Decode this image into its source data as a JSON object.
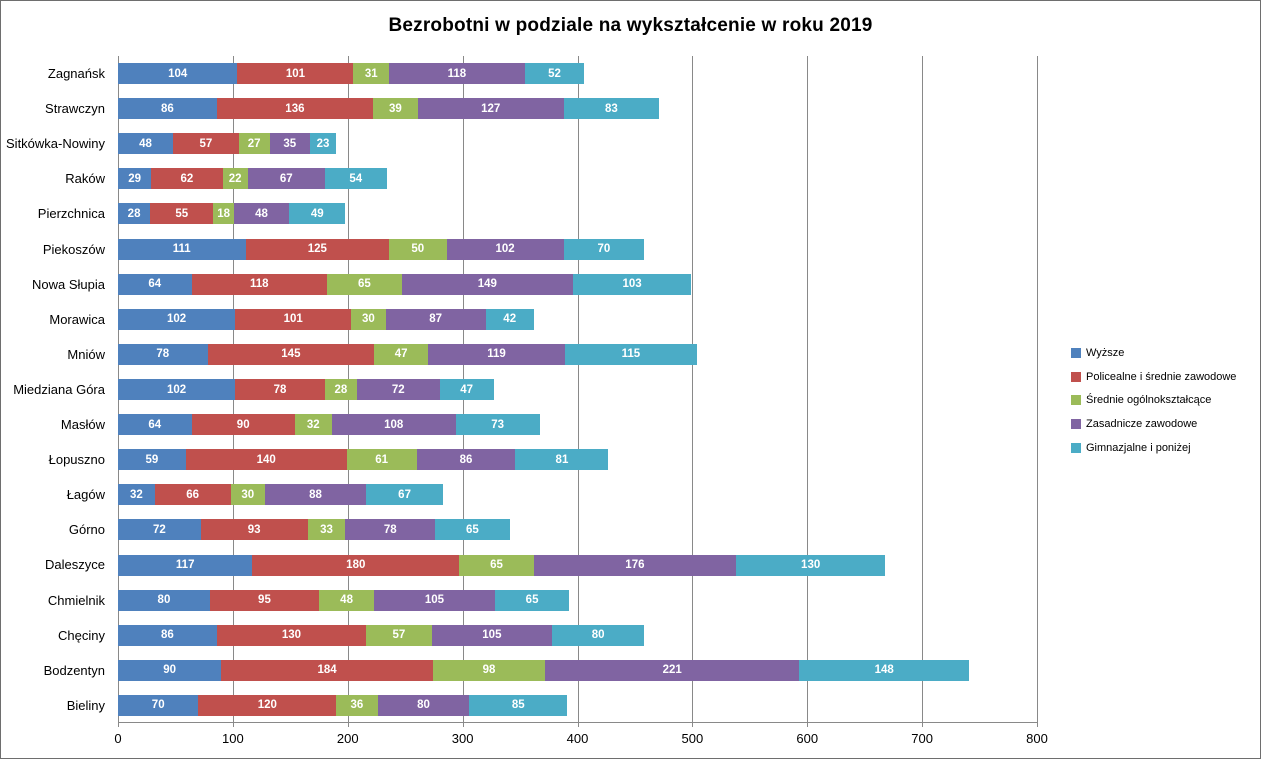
{
  "title": "Bezrobotni w podziale na wykształcenie w roku 2019",
  "chart_data": {
    "type": "bar",
    "orientation": "horizontal",
    "stacked": true,
    "title": "Bezrobotni w podziale na wykształcenie w roku 2019",
    "categories": [
      "Zagnańsk",
      "Strawczyn",
      "Sitkówka-Nowiny",
      "Raków",
      "Pierzchnica",
      "Piekoszów",
      "Nowa Słupia",
      "Morawica",
      "Mniów",
      "Miedziana Góra",
      "Masłów",
      "Łopuszno",
      "Łagów",
      "Górno",
      "Daleszyce",
      "Chmielnik",
      "Chęciny",
      "Bodzentyn",
      "Bieliny"
    ],
    "series": [
      {
        "name": "Wyższe",
        "color": "#4F81BD",
        "values": [
          104,
          86,
          48,
          29,
          28,
          111,
          64,
          102,
          78,
          102,
          64,
          59,
          32,
          72,
          117,
          80,
          86,
          90,
          70
        ]
      },
      {
        "name": "Policealne i średnie zawodowe",
        "color": "#C0504D",
        "values": [
          101,
          136,
          57,
          62,
          55,
          125,
          118,
          101,
          145,
          78,
          90,
          140,
          66,
          93,
          180,
          95,
          130,
          184,
          120
        ]
      },
      {
        "name": "Średnie ogólnokształcące",
        "color": "#9BBB59",
        "values": [
          31,
          39,
          27,
          22,
          18,
          50,
          65,
          30,
          47,
          28,
          32,
          61,
          30,
          33,
          65,
          48,
          57,
          98,
          36
        ]
      },
      {
        "name": "Zasadnicze zawodowe",
        "color": "#8064A2",
        "values": [
          118,
          127,
          35,
          67,
          48,
          102,
          149,
          87,
          119,
          72,
          108,
          86,
          88,
          78,
          176,
          105,
          105,
          221,
          80
        ]
      },
      {
        "name": "Gimnazjalne i poniżej",
        "color": "#4BACC6",
        "values": [
          52,
          83,
          23,
          54,
          49,
          70,
          103,
          42,
          115,
          47,
          73,
          81,
          67,
          65,
          130,
          65,
          80,
          148,
          85
        ]
      }
    ],
    "xlim": [
      0,
      800
    ],
    "x_ticks": [
      0,
      100,
      200,
      300,
      400,
      500,
      600,
      700,
      800
    ],
    "grid": "vertical",
    "legend_position": "right",
    "value_labels": "inside-white",
    "gridline_color": "#898989"
  }
}
